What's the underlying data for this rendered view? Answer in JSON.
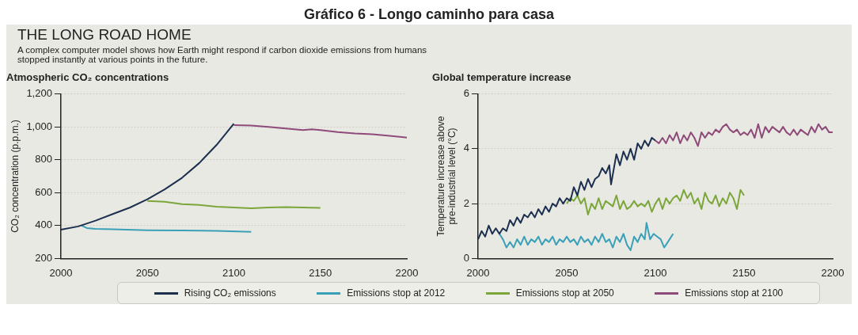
{
  "chart_data": [
    {
      "type": "line",
      "title": "Atmospheric CO₂ concentrations",
      "annotations": [
        "Gráfico 6 - Longo caminho para casa",
        "THE LONG ROAD HOME",
        "A complex computer model shows how Earth might respond if carbon dioxide emissions from humans stopped instantly at various points in the future."
      ],
      "ylabel": "CO₂ concentration (p.p.m.)",
      "xlim": [
        2000,
        2200
      ],
      "xticks": [
        2000,
        2050,
        2100,
        2150,
        2200
      ],
      "ylim": [
        200,
        1200
      ],
      "yticks": [
        200,
        400,
        600,
        800,
        {
          "value": 1000,
          "label": "1,000"
        },
        {
          "value": 1200,
          "label": "1,200"
        }
      ],
      "grid": "y",
      "legend": "bottom",
      "marker": "none",
      "line_style": "solid",
      "series": [
        {
          "name": "Rising CO₂ emissions",
          "color": "#1b2f4e",
          "x": [
            2000,
            2010,
            2020,
            2030,
            2040,
            2050,
            2060,
            2070,
            2080,
            2090,
            2100
          ],
          "values": [
            375,
            395,
            430,
            470,
            510,
            560,
            620,
            690,
            780,
            890,
            1020
          ]
        },
        {
          "name": "Emissions stop at 2012",
          "color": "#3aa0b8",
          "x": [
            2012,
            2015,
            2020,
            2030,
            2050,
            2070,
            2090,
            2110
          ],
          "values": [
            400,
            385,
            380,
            378,
            372,
            370,
            368,
            362
          ]
        },
        {
          "name": "Emissions stop at 2050",
          "color": "#7aa63a",
          "x": [
            2050,
            2060,
            2070,
            2080,
            2090,
            2100,
            2110,
            2120,
            2130,
            2140,
            2150
          ],
          "values": [
            550,
            545,
            530,
            525,
            515,
            510,
            505,
            510,
            512,
            510,
            508
          ]
        },
        {
          "name": "Emissions stop at 2100",
          "color": "#8e4a78",
          "x": [
            2100,
            2110,
            2120,
            2130,
            2140,
            2145,
            2150,
            2160,
            2170,
            2180,
            2190,
            2200
          ],
          "values": [
            1010,
            1008,
            1000,
            990,
            980,
            985,
            980,
            968,
            960,
            955,
            945,
            935
          ]
        }
      ]
    },
    {
      "type": "line",
      "title": "Global temperature increase",
      "ylabel": "Temperature increase above pre-industrial level (°C)",
      "xlim": [
        2000,
        2200
      ],
      "xticks": [
        2000,
        2050,
        2100,
        2150,
        2200
      ],
      "ylim": [
        0,
        6
      ],
      "yticks": [
        0,
        2,
        4,
        6
      ],
      "grid": "y",
      "legend": "bottom",
      "marker": "none",
      "line_style": "solid",
      "series": [
        {
          "name": "Rising CO₂ emissions",
          "color": "#1b2f4e",
          "x": [
            2000,
            2002,
            2004,
            2006,
            2008,
            2010,
            2012,
            2014,
            2016,
            2018,
            2020,
            2022,
            2024,
            2026,
            2028,
            2030,
            2032,
            2034,
            2036,
            2038,
            2040,
            2042,
            2044,
            2046,
            2048,
            2050,
            2052,
            2054,
            2056,
            2058,
            2060,
            2062,
            2064,
            2066,
            2068,
            2070,
            2072,
            2074,
            2075,
            2078,
            2080,
            2082,
            2084,
            2086,
            2088,
            2090,
            2092,
            2094,
            2096,
            2098,
            2100
          ],
          "values": [
            0.7,
            1.0,
            0.8,
            1.2,
            0.9,
            1.1,
            0.9,
            1.1,
            1.0,
            1.4,
            1.2,
            1.5,
            1.3,
            1.6,
            1.5,
            1.7,
            1.5,
            1.8,
            1.6,
            1.9,
            1.7,
            2.0,
            1.9,
            2.2,
            2.0,
            2.2,
            2.1,
            2.6,
            2.3,
            2.8,
            2.5,
            2.9,
            2.6,
            2.9,
            3.0,
            3.3,
            3.1,
            3.4,
            2.7,
            3.8,
            3.4,
            3.9,
            3.6,
            4.0,
            3.6,
            4.2,
            4.0,
            4.3,
            4.1,
            4.4,
            4.3
          ]
        },
        {
          "name": "Emissions stop at 2012",
          "color": "#3aa0b8",
          "x": [
            2012,
            2014,
            2016,
            2018,
            2020,
            2022,
            2024,
            2026,
            2028,
            2030,
            2032,
            2034,
            2036,
            2038,
            2040,
            2042,
            2044,
            2046,
            2048,
            2050,
            2052,
            2054,
            2056,
            2058,
            2060,
            2062,
            2064,
            2066,
            2068,
            2070,
            2072,
            2074,
            2076,
            2078,
            2080,
            2082,
            2084,
            2086,
            2088,
            2090,
            2092,
            2094,
            2095,
            2097,
            2099,
            2101,
            2103,
            2105,
            2107,
            2110
          ],
          "values": [
            0.9,
            0.7,
            0.4,
            0.6,
            0.4,
            0.7,
            0.5,
            0.8,
            0.5,
            0.7,
            0.6,
            0.8,
            0.5,
            0.7,
            0.6,
            0.8,
            0.5,
            0.7,
            0.6,
            0.8,
            0.6,
            0.7,
            0.5,
            0.8,
            0.6,
            0.7,
            0.5,
            0.8,
            0.6,
            0.9,
            0.6,
            0.7,
            0.4,
            0.8,
            0.6,
            0.9,
            0.5,
            0.3,
            0.8,
            0.6,
            0.9,
            0.7,
            1.3,
            0.7,
            0.9,
            0.8,
            0.7,
            0.4,
            0.6,
            0.9
          ]
        },
        {
          "name": "Emissions stop at 2050",
          "color": "#7aa63a",
          "x": [
            2050,
            2052,
            2054,
            2056,
            2058,
            2060,
            2062,
            2064,
            2066,
            2068,
            2070,
            2072,
            2074,
            2076,
            2078,
            2080,
            2082,
            2084,
            2086,
            2088,
            2090,
            2092,
            2094,
            2096,
            2098,
            2100,
            2102,
            2104,
            2106,
            2108,
            2110,
            2112,
            2114,
            2116,
            2118,
            2120,
            2122,
            2124,
            2126,
            2128,
            2130,
            2132,
            2134,
            2136,
            2138,
            2140,
            2142,
            2144,
            2146,
            2148,
            2150
          ],
          "values": [
            2.0,
            2.2,
            2.1,
            2.3,
            2.0,
            2.2,
            1.6,
            2.0,
            1.8,
            2.2,
            1.8,
            2.1,
            2.0,
            1.9,
            2.3,
            1.8,
            2.1,
            1.8,
            1.9,
            2.1,
            1.9,
            2.0,
            1.9,
            2.1,
            1.7,
            2.0,
            2.2,
            1.8,
            2.2,
            2.0,
            2.2,
            2.3,
            2.1,
            2.5,
            2.2,
            2.4,
            2.0,
            2.2,
            1.8,
            2.4,
            2.1,
            2.0,
            2.3,
            1.9,
            2.2,
            2.0,
            2.4,
            2.2,
            1.8,
            2.5,
            2.3
          ]
        },
        {
          "name": "Emissions stop at 2100",
          "color": "#8e4a78",
          "x": [
            2100,
            2102,
            2104,
            2106,
            2108,
            2110,
            2112,
            2114,
            2116,
            2118,
            2120,
            2122,
            2124,
            2126,
            2128,
            2130,
            2132,
            2134,
            2136,
            2138,
            2140,
            2142,
            2144,
            2146,
            2148,
            2150,
            2152,
            2154,
            2156,
            2158,
            2160,
            2162,
            2164,
            2166,
            2168,
            2170,
            2172,
            2174,
            2176,
            2178,
            2180,
            2182,
            2184,
            2186,
            2188,
            2190,
            2192,
            2194,
            2196,
            2198,
            2200
          ],
          "values": [
            4.3,
            4.2,
            4.4,
            4.2,
            4.5,
            4.3,
            4.6,
            4.2,
            4.5,
            4.3,
            4.6,
            4.4,
            4.1,
            4.6,
            4.4,
            4.6,
            4.5,
            4.7,
            4.6,
            4.8,
            4.9,
            4.7,
            4.6,
            4.7,
            4.5,
            4.6,
            4.5,
            4.7,
            4.4,
            4.9,
            4.4,
            4.8,
            4.6,
            4.8,
            4.7,
            4.6,
            4.8,
            4.6,
            4.5,
            4.7,
            4.5,
            4.7,
            4.6,
            4.5,
            4.8,
            4.6,
            4.9,
            4.7,
            4.8,
            4.6,
            4.6
          ]
        }
      ]
    }
  ]
}
